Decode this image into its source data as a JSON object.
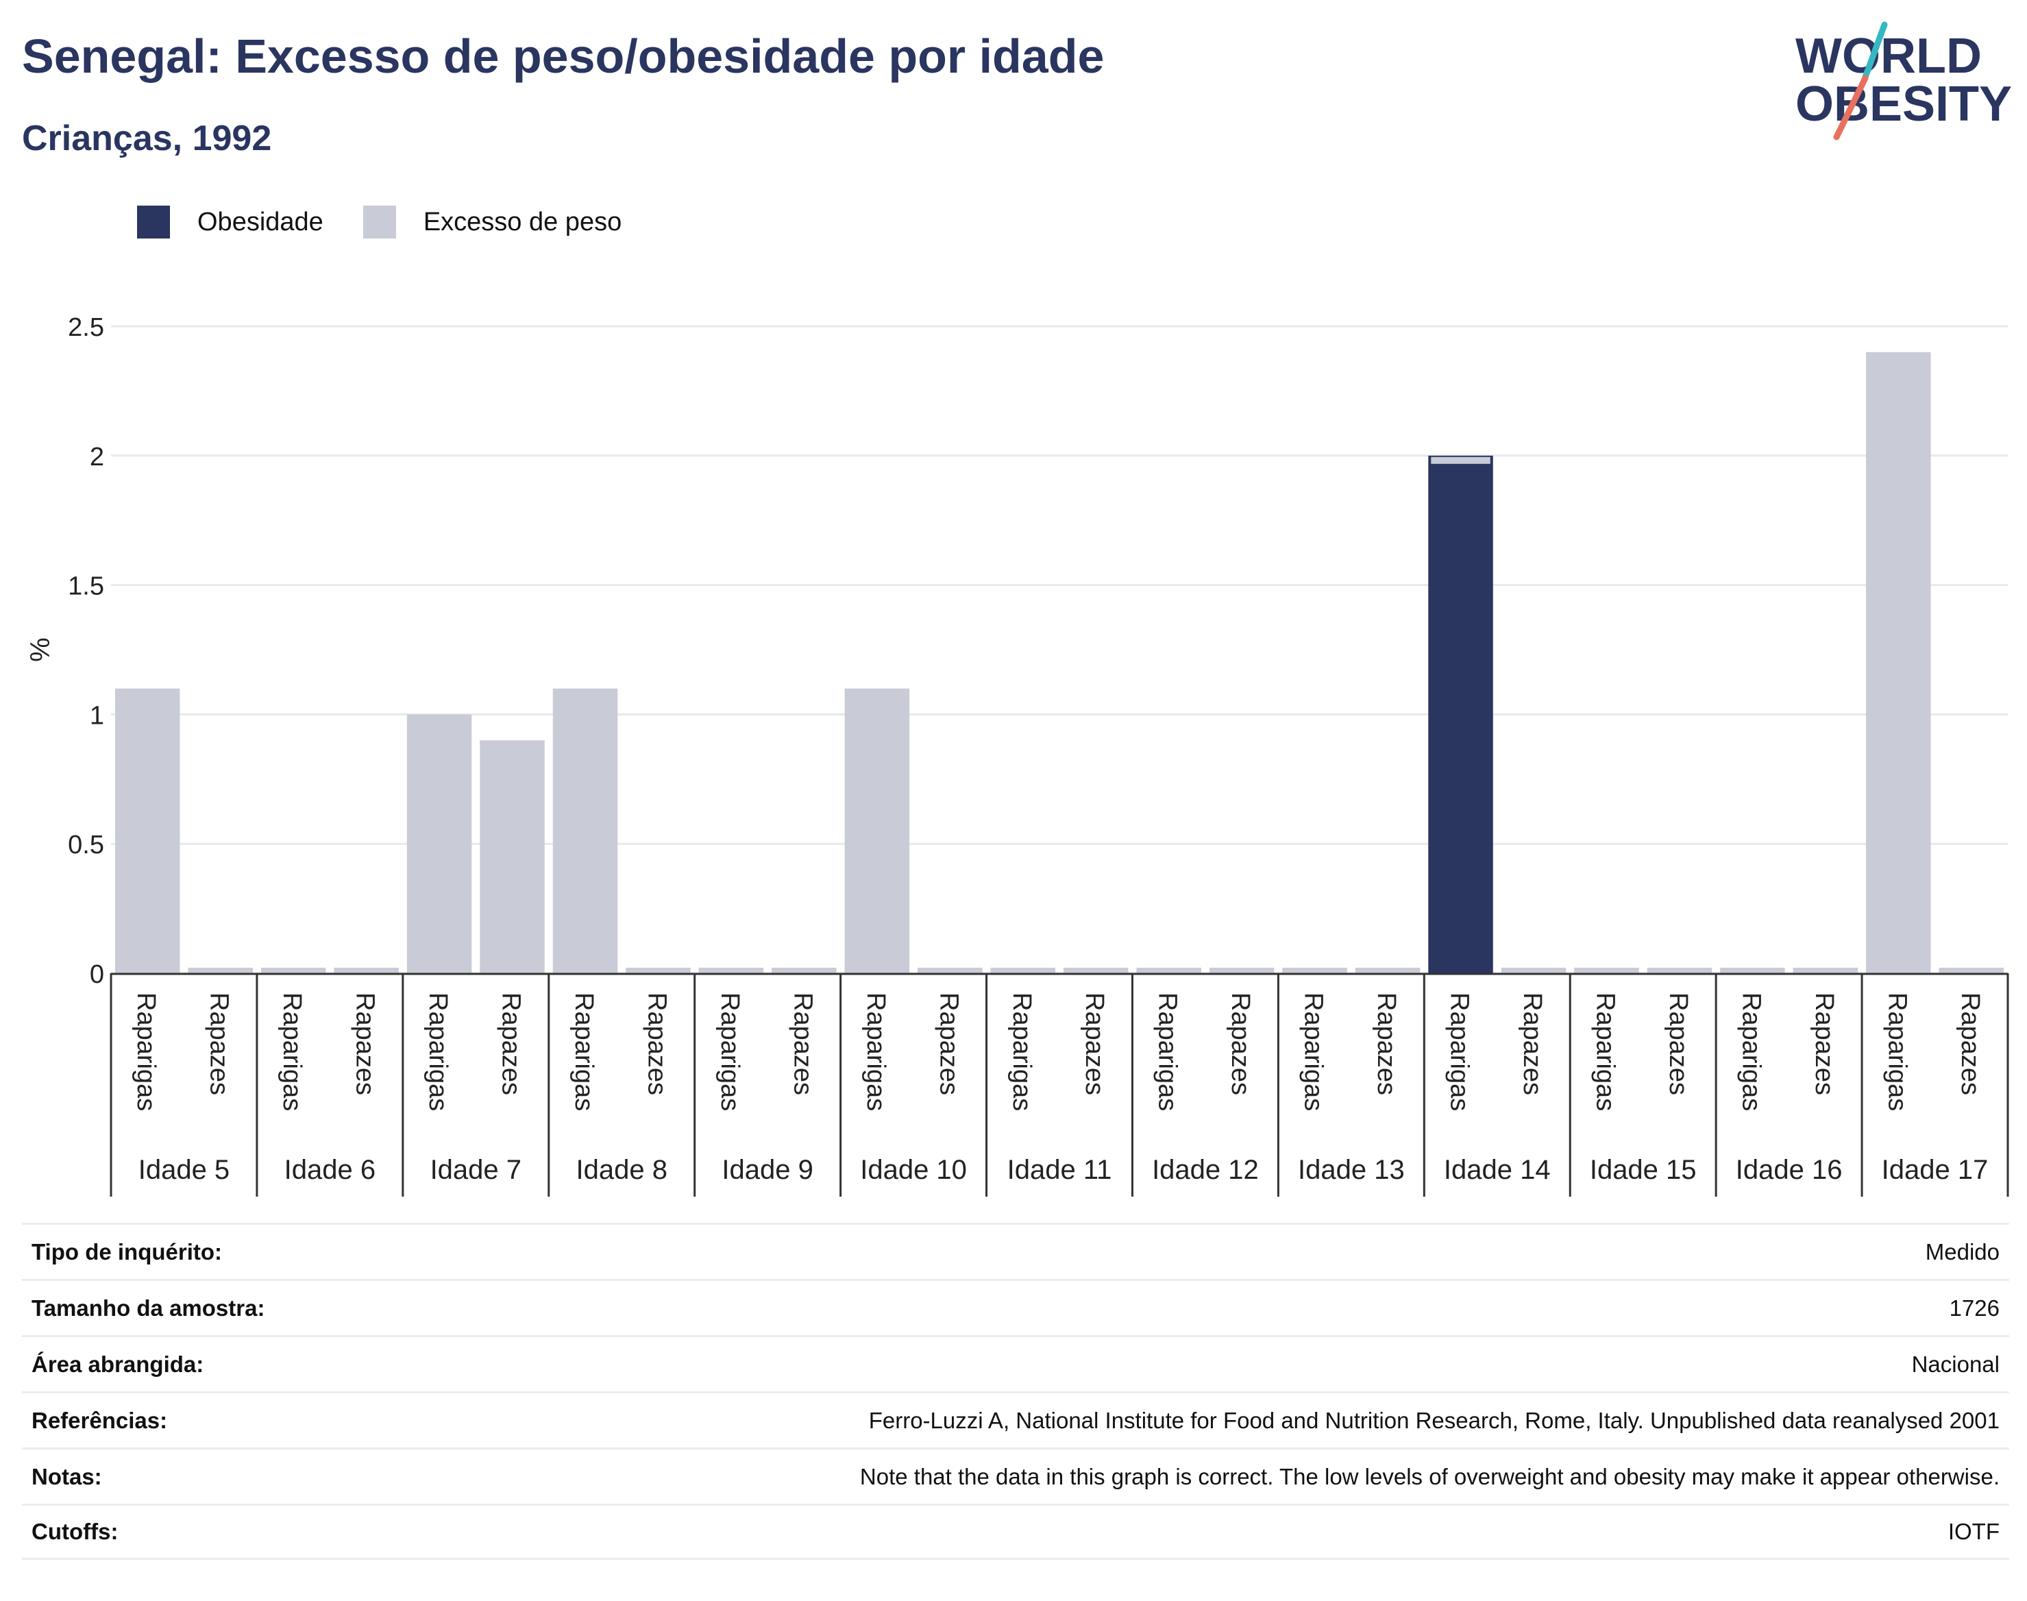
{
  "header": {
    "title": "Senegal: Excesso de peso/obesidade por idade",
    "subtitle": "Crianças, 1992"
  },
  "logo": {
    "line1": "WORLD",
    "line2": "OBESITY"
  },
  "colors": {
    "obesity": "#2a3560",
    "overweight": "#c9cbd6",
    "title": "#2a3560",
    "grid": "#e6e9ee"
  },
  "legend": [
    {
      "label": "Obesidade",
      "color": "#2a3560"
    },
    {
      "label": "Excesso de peso",
      "color": "#c9cbd6"
    }
  ],
  "chart_data": {
    "type": "bar",
    "stacked": true,
    "ylabel": "%",
    "ylim": [
      0,
      2.5
    ],
    "yticks": [
      0,
      0.5,
      1,
      1.5,
      2,
      2.5
    ],
    "ytick_labels": [
      "0",
      "0.5",
      "1",
      "1.5",
      "2",
      "2.5"
    ],
    "grid": true,
    "legend_position": "top-left",
    "groups": [
      "Idade 5",
      "Idade 6",
      "Idade 7",
      "Idade 8",
      "Idade 9",
      "Idade 10",
      "Idade 11",
      "Idade 12",
      "Idade 13",
      "Idade 14",
      "Idade 15",
      "Idade 16",
      "Idade 17"
    ],
    "subcategories": [
      "Raparigas",
      "Rapazes"
    ],
    "series": [
      {
        "name": "Obesidade",
        "values": [
          [
            0,
            0
          ],
          [
            0,
            0
          ],
          [
            0,
            0
          ],
          [
            0,
            0
          ],
          [
            0,
            0
          ],
          [
            0,
            0
          ],
          [
            0,
            0
          ],
          [
            0,
            0
          ],
          [
            0,
            0
          ],
          [
            2.0,
            0
          ],
          [
            0,
            0
          ],
          [
            0,
            0
          ],
          [
            0,
            0
          ]
        ]
      },
      {
        "name": "Excesso de peso",
        "values": [
          [
            1.1,
            0
          ],
          [
            0,
            0
          ],
          [
            1.0,
            0.9
          ],
          [
            1.1,
            0
          ],
          [
            0,
            0
          ],
          [
            1.1,
            0
          ],
          [
            0,
            0
          ],
          [
            0,
            0
          ],
          [
            0,
            0
          ],
          [
            0,
            0
          ],
          [
            0,
            0
          ],
          [
            0,
            0
          ],
          [
            2.4,
            0
          ]
        ]
      }
    ]
  },
  "info": [
    {
      "label": "Tipo de inquérito:",
      "value": "Medido"
    },
    {
      "label": "Tamanho da amostra:",
      "value": "1726"
    },
    {
      "label": "Área abrangida:",
      "value": "Nacional"
    },
    {
      "label": "Referências:",
      "value": "Ferro-Luzzi A, National Institute for Food and Nutrition Research, Rome, Italy. Unpublished data reanalysed 2001"
    },
    {
      "label": "Notas:",
      "value": "Note that the data in this graph is correct. The low levels of overweight and obesity may make it appear otherwise."
    },
    {
      "label": "Cutoffs:",
      "value": "IOTF"
    }
  ]
}
